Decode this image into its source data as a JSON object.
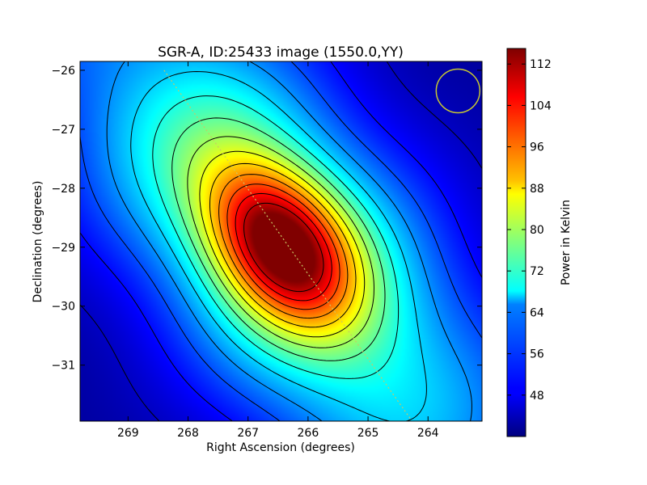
{
  "chart_data": {
    "type": "heatmap",
    "title": "SGR-A, ID:25433 image (1550.0,YY)",
    "xlabel": "Right Ascension (degrees)",
    "ylabel": "Declination (degrees)",
    "xlim": [
      269.8,
      263.1
    ],
    "ylim": [
      -31.95,
      -25.85
    ],
    "x_ticks": [
      "269",
      "268",
      "267",
      "266",
      "265",
      "264"
    ],
    "x_tick_values": [
      269,
      268,
      267,
      266,
      265,
      264
    ],
    "y_ticks": [
      "−26",
      "−27",
      "−28",
      "−29",
      "−30",
      "−31"
    ],
    "y_tick_values": [
      -26,
      -27,
      -28,
      -29,
      -30,
      -31
    ],
    "colorbar": {
      "label": "Power in Kelvin",
      "range": [
        40,
        115
      ],
      "ticks": [
        "48",
        "56",
        "64",
        "72",
        "80",
        "88",
        "96",
        "104",
        "112"
      ],
      "tick_values": [
        48,
        56,
        64,
        72,
        80,
        88,
        96,
        104,
        112
      ],
      "colormap": "jet"
    },
    "peak": {
      "ra": 266.45,
      "dec": -28.95,
      "value": 115
    },
    "background_level": 42,
    "grid": false,
    "colors": {
      "scan_line": "#c8c864",
      "beam_circle": "#c8c832",
      "contour": "#000000"
    }
  }
}
